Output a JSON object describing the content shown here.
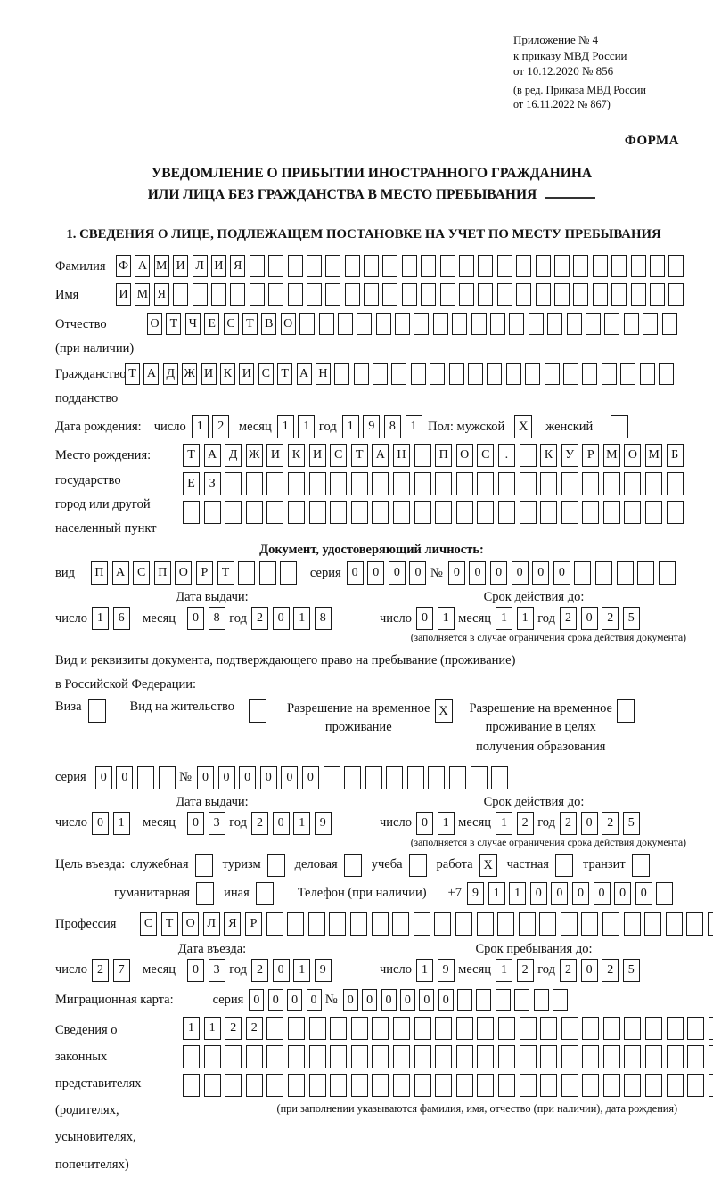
{
  "header": {
    "line1": "Приложение № 4",
    "line2": "к приказу МВД России",
    "line3": "от 10.12.2020 № 856",
    "line4": "(в ред. Приказа МВД России",
    "line5": "от 16.11.2022 № 867)",
    "form_label": "ФОРМА"
  },
  "title": {
    "line1": "УВЕДОМЛЕНИЕ О ПРИБЫТИИ ИНОСТРАННОГО ГРАЖДАНИНА",
    "line2": "ИЛИ ЛИЦА БЕЗ ГРАЖДАНСТВА В МЕСТО ПРЕБЫВАНИЯ"
  },
  "section1_heading": "1. СВЕДЕНИЯ О ЛИЦЕ, ПОДЛЕЖАЩЕМ ПОСТАНОВКЕ НА УЧЕТ ПО МЕСТУ ПРЕБЫВАНИЯ",
  "common": {
    "day_label": "число",
    "month_label": "месяц",
    "year_label": "год",
    "series_label": "серия",
    "number_label": "№"
  },
  "surname": {
    "label": "Фамилия",
    "boxes": {
      "value": "ФАМИЛИЯ",
      "count": 30
    }
  },
  "name": {
    "label": "Имя",
    "boxes": {
      "value": "ИМЯ",
      "count": 30
    }
  },
  "patronymic": {
    "label1": "Отчество",
    "label2": "(при наличии)",
    "boxes": {
      "value": "ОТЧЕСТВО",
      "count": 28
    }
  },
  "citizenship": {
    "label1": "Гражданство,",
    "label2": "подданство",
    "boxes": {
      "value": "ТАДЖИКИСТАН",
      "count": 29
    }
  },
  "birth_date": {
    "label": "Дата рождения:",
    "day": "12",
    "month": "11",
    "year": "1981",
    "sex_label": "Пол: мужской",
    "male_checked": true,
    "female_label": "женский",
    "female_checked": false
  },
  "birth_place": {
    "label1": "Место рождения:",
    "label2": "государство",
    "label3": "город или другой",
    "label4": "населенный пункт",
    "line1": {
      "value": "ТАДЖИКИСТАН ПОС. КУРМОМБ",
      "count": 24
    },
    "line2": {
      "value": "ЕЗ",
      "count": 24
    },
    "line3": {
      "value": "",
      "count": 24
    }
  },
  "identity_doc": {
    "heading": "Документ, удостоверяющий личность:",
    "type_label": "вид",
    "type": {
      "value": "ПАСПОРТ",
      "count": 10
    },
    "series": {
      "value": "0000",
      "count": 4
    },
    "number": {
      "value": "000000",
      "count": 11
    },
    "issue_heading": "Дата выдачи:",
    "issue_day": "16",
    "issue_month": "08",
    "issue_year": "2018",
    "expiry_heading": "Срок действия до:",
    "expiry_day": "01",
    "expiry_month": "11",
    "expiry_year": "2025",
    "expiry_note": "(заполняется в случае ограничения срока действия документа)"
  },
  "residence_doc": {
    "intro1": "Вид и реквизиты документа, подтверждающего право на пребывание (проживание)",
    "intro2": "в Российской Федерации:",
    "visa": {
      "label": "Виза",
      "checked": false
    },
    "residence_permit": {
      "label": "Вид на жительство",
      "checked": false
    },
    "temp_residence": {
      "line1": "Разрешение на временное",
      "line2": "проживание",
      "checked": true
    },
    "temp_residence_edu": {
      "line1": "Разрешение на временное",
      "line2": "проживание в целях",
      "line3": "получения образования",
      "checked": false
    },
    "series": {
      "value": "00",
      "count": 4
    },
    "number": {
      "value": "000000",
      "count": 15
    },
    "issue_heading": "Дата выдачи:",
    "issue_day": "01",
    "issue_month": "03",
    "issue_year": "2019",
    "expiry_heading": "Срок действия до:",
    "expiry_day": "01",
    "expiry_month": "12",
    "expiry_year": "2025",
    "expiry_note": "(заполняется в случае ограничения срока действия документа)"
  },
  "purpose": {
    "label": "Цель въезда:",
    "options_row1": [
      {
        "label": "служебная",
        "checked": false
      },
      {
        "label": "туризм",
        "checked": false
      },
      {
        "label": "деловая",
        "checked": false
      },
      {
        "label": "учеба",
        "checked": false
      },
      {
        "label": "работа",
        "checked": true
      },
      {
        "label": "частная",
        "checked": false
      },
      {
        "label": "транзит",
        "checked": false
      }
    ],
    "options_row2": [
      {
        "label": "гуманитарная",
        "checked": false
      },
      {
        "label": "иная",
        "checked": false
      }
    ],
    "phone_label": "Телефон (при наличии)",
    "phone_prefix": "+7",
    "phone": {
      "value": "911000000",
      "count": 10
    }
  },
  "profession": {
    "label": "Профессия",
    "boxes": {
      "value": "СТОЛЯР",
      "count": 28
    }
  },
  "entry": {
    "issue_heading": "Дата въезда:",
    "day": "27",
    "month": "03",
    "year": "2019",
    "stay_heading": "Срок пребывания до:",
    "stay_day": "19",
    "stay_month": "12",
    "stay_year": "2025"
  },
  "migration_card": {
    "label": "Миграционная карта:",
    "series": {
      "value": "0000",
      "count": 4
    },
    "number": {
      "value": "000000",
      "count": 12
    }
  },
  "representatives": {
    "label1": "Сведения о",
    "label2": "законных",
    "label3": "представителях",
    "label4": "(родителях,",
    "label5": "усыновителях,",
    "label6": "попечителях)",
    "line1": {
      "value": "1122",
      "count": 28
    },
    "line2": {
      "value": "",
      "count": 28
    },
    "line3": {
      "value": "",
      "count": 28
    },
    "note": "(при заполнении указываются фамилия, имя, отчество (при наличии), дата рождения)"
  }
}
